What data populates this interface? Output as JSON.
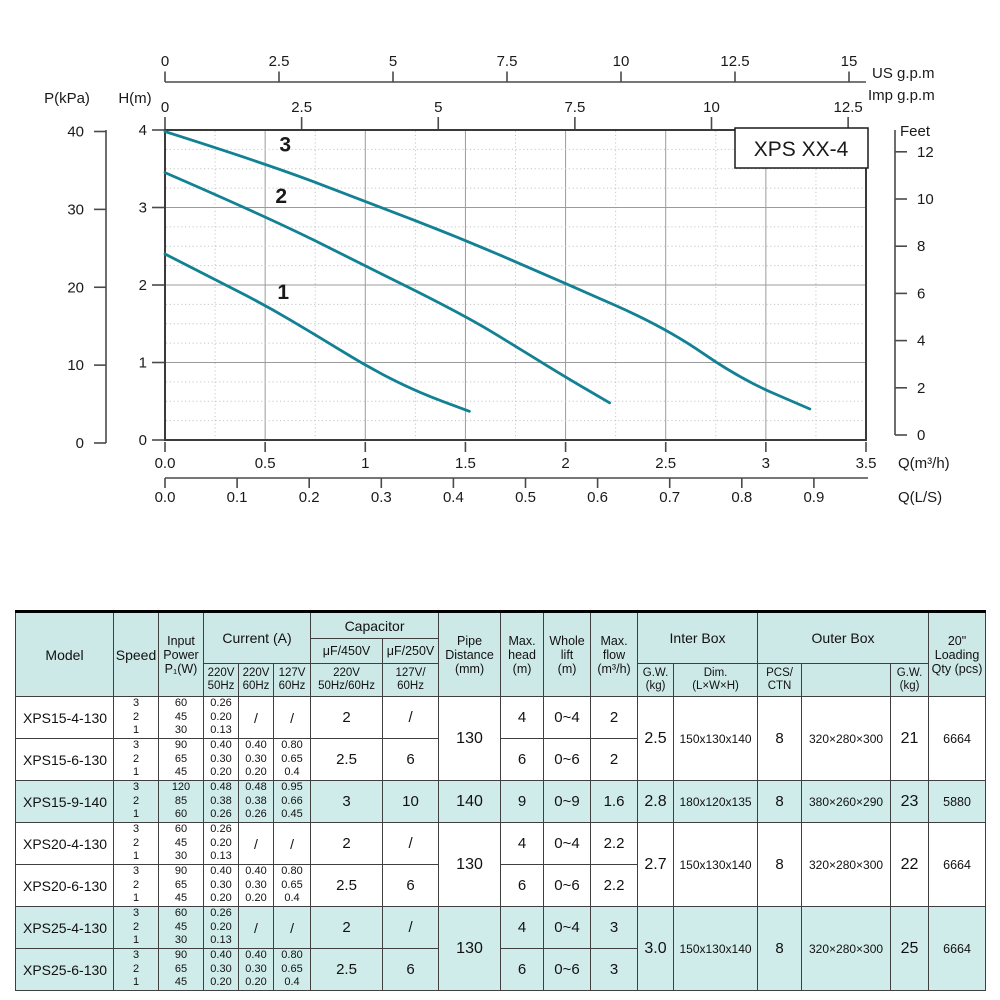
{
  "page": {
    "background": "#ffffff"
  },
  "chart_data": {
    "type": "line",
    "title": "XPS XX-4",
    "xlim": [
      0,
      3.5
    ],
    "ylim": [
      0,
      4
    ],
    "grid": "on",
    "colors": {
      "curve": "#118193",
      "grid_major": "#9b9b9b",
      "grid_minor": "#c6c6c6",
      "frame": "#3a3a3a",
      "axis": "#4a4a4a",
      "text": "#1a1a1a"
    },
    "top_axis_primary": {
      "label": "US g.p.m",
      "tick_values": [
        0,
        2.5,
        5,
        7.5,
        10,
        12.5,
        15
      ],
      "tick_labels": [
        "0",
        "2.5",
        "5",
        "7.5",
        "10",
        "12.5",
        "15"
      ]
    },
    "top_axis_secondary": {
      "label": "Imp g.p.m",
      "tick_values": [
        0,
        2.5,
        5,
        7.5,
        10,
        12.5
      ],
      "tick_labels": [
        "0",
        "2.5",
        "5",
        "7.5",
        "10",
        "12.5"
      ]
    },
    "left_axis_pressure": {
      "label": "P(kPa)",
      "tick_values": [
        40,
        30,
        20,
        10,
        0
      ],
      "tick_labels": [
        "40",
        "30",
        "20",
        "10",
        "0"
      ]
    },
    "left_axis_head": {
      "label": "H(m)",
      "tick_values": [
        4,
        3,
        2,
        1,
        0
      ],
      "tick_labels": [
        "4",
        "3",
        "2",
        "1",
        "0"
      ]
    },
    "right_axis": {
      "label": "Feet",
      "tick_values": [
        12,
        10,
        8,
        6,
        4,
        2,
        0
      ],
      "tick_labels": [
        "12",
        "10",
        "8",
        "6",
        "4",
        "2",
        "0"
      ]
    },
    "bottom_axis_primary": {
      "label": "Q(m³/h)",
      "tick_values": [
        0,
        0.5,
        1,
        1.5,
        2,
        2.5,
        3,
        3.5
      ],
      "tick_labels": [
        "0.0",
        "0.5",
        "1",
        "1.5",
        "2",
        "2.5",
        "3",
        "3.5"
      ]
    },
    "bottom_axis_secondary": {
      "label": "Q(L/S)",
      "tick_values": [
        0,
        0.1,
        0.2,
        0.3,
        0.4,
        0.5,
        0.6,
        0.7,
        0.8,
        0.9
      ],
      "tick_labels": [
        "0.0",
        "0.1",
        "0.2",
        "0.3",
        "0.4",
        "0.5",
        "0.6",
        "0.7",
        "0.8",
        "0.9"
      ]
    },
    "series": [
      {
        "name": "1",
        "label_pos": [
          0.59,
          1.82
        ],
        "points": [
          [
            0,
            2.4
          ],
          [
            0.25,
            2.07
          ],
          [
            0.5,
            1.74
          ],
          [
            0.75,
            1.36
          ],
          [
            1.0,
            0.96
          ],
          [
            1.25,
            0.63
          ],
          [
            1.52,
            0.37
          ]
        ]
      },
      {
        "name": "2",
        "label_pos": [
          0.58,
          3.06
        ],
        "points": [
          [
            0,
            3.45
          ],
          [
            0.5,
            2.89
          ],
          [
            1.0,
            2.25
          ],
          [
            1.5,
            1.6
          ],
          [
            1.75,
            1.21
          ],
          [
            2.0,
            0.81
          ],
          [
            2.22,
            0.48
          ]
        ]
      },
      {
        "name": "3",
        "label_pos": [
          0.6,
          3.72
        ],
        "points": [
          [
            0,
            3.98
          ],
          [
            0.5,
            3.57
          ],
          [
            1.0,
            3.08
          ],
          [
            1.5,
            2.58
          ],
          [
            2.0,
            2.02
          ],
          [
            2.5,
            1.45
          ],
          [
            2.87,
            0.79
          ],
          [
            3.22,
            0.4
          ]
        ]
      }
    ]
  },
  "table": {
    "colors": {
      "header_bg": "#cde9e7",
      "highlight_bg": "#d0ecea",
      "row_bg": "#ffffff",
      "border": "#3f3f3f"
    },
    "headers": {
      "model": "Model",
      "speed": "Speed",
      "input_power": [
        "Input",
        "Power",
        "P₁(W)"
      ],
      "current": "Current (A)",
      "c220_50": [
        "220V",
        "50Hz"
      ],
      "c220_60": [
        "220V",
        "60Hz"
      ],
      "c127_60": [
        "127V",
        "60Hz"
      ],
      "capacitor": "Capacitor",
      "uf450": "μF/450V",
      "uf250": "μF/250V",
      "v220_5060": [
        "220V",
        "50Hz/60Hz"
      ],
      "v127_60": [
        "127V/",
        "60Hz"
      ],
      "pipe": [
        "Pipe",
        "Distance",
        "(mm)"
      ],
      "head": [
        "Max.",
        "head",
        "(m)"
      ],
      "lift": [
        "Whole",
        "lift",
        "(m)"
      ],
      "flow": [
        "Max.",
        "flow",
        "(m³/h)"
      ],
      "inter_box": "Inter Box",
      "gw": [
        "G.W.",
        "(kg)"
      ],
      "dim": [
        "Dim.",
        "(L×W×H)"
      ],
      "outer_box": "Outer Box",
      "pcs": [
        "PCS/",
        "CTN"
      ],
      "outer_blank": "",
      "gw2": [
        "G.W.",
        "(kg)"
      ],
      "qty": [
        "20\"",
        "Loading",
        "Qty (pcs)"
      ]
    },
    "rows": [
      {
        "model": "XPS15-4-130",
        "highlight": false,
        "speed": [
          "3",
          "2",
          "1"
        ],
        "power": [
          "60",
          "45",
          "30"
        ],
        "i220_50": [
          "0.26",
          "0.20",
          "0.13"
        ],
        "i220_60": "/",
        "i127_60": "/",
        "cap450": "2",
        "cap250": "/",
        "head": "4",
        "lift": "0~4",
        "flow": "2",
        "group": {
          "span": 2,
          "pipe": "130",
          "gw": "2.5",
          "dim": "150x130x140",
          "pcs": "8",
          "outer_dim": "320×280×300",
          "gw2": "21",
          "qty": "6664"
        }
      },
      {
        "model": "XPS15-6-130",
        "highlight": false,
        "speed": [
          "3",
          "2",
          "1"
        ],
        "power": [
          "90",
          "65",
          "45"
        ],
        "i220_50": [
          "0.40",
          "0.30",
          "0.20"
        ],
        "i220_60": [
          "0.40",
          "0.30",
          "0.20"
        ],
        "i127_60": [
          "0.80",
          "0.65",
          "0.4"
        ],
        "cap450": "2.5",
        "cap250": "6",
        "head": "6",
        "lift": "0~6",
        "flow": "2"
      },
      {
        "model": "XPS15-9-140",
        "highlight": true,
        "speed": [
          "3",
          "2",
          "1"
        ],
        "power": [
          "120",
          "85",
          "60"
        ],
        "i220_50": [
          "0.48",
          "0.38",
          "0.26"
        ],
        "i220_60": [
          "0.48",
          "0.38",
          "0.26"
        ],
        "i127_60": [
          "0.95",
          "0.66",
          "0.45"
        ],
        "cap450": "3",
        "cap250": "10",
        "head": "9",
        "lift": "0~9",
        "flow": "1.6",
        "group": {
          "span": 1,
          "pipe": "140",
          "gw": "2.8",
          "dim": "180x120x135",
          "pcs": "8",
          "outer_dim": "380×260×290",
          "gw2": "23",
          "qty": "5880"
        }
      },
      {
        "model": "XPS20-4-130",
        "highlight": false,
        "speed": [
          "3",
          "2",
          "1"
        ],
        "power": [
          "60",
          "45",
          "30"
        ],
        "i220_50": [
          "0.26",
          "0.20",
          "0.13"
        ],
        "i220_60": "/",
        "i127_60": "/",
        "cap450": "2",
        "cap250": "/",
        "head": "4",
        "lift": "0~4",
        "flow": "2.2",
        "group": {
          "span": 2,
          "pipe": "130",
          "gw": "2.7",
          "dim": "150x130x140",
          "pcs": "8",
          "outer_dim": "320×280×300",
          "gw2": "22",
          "qty": "6664"
        }
      },
      {
        "model": "XPS20-6-130",
        "highlight": false,
        "speed": [
          "3",
          "2",
          "1"
        ],
        "power": [
          "90",
          "65",
          "45"
        ],
        "i220_50": [
          "0.40",
          "0.30",
          "0.20"
        ],
        "i220_60": [
          "0.40",
          "0.30",
          "0.20"
        ],
        "i127_60": [
          "0.80",
          "0.65",
          "0.4"
        ],
        "cap450": "2.5",
        "cap250": "6",
        "head": "6",
        "lift": "0~6",
        "flow": "2.2"
      },
      {
        "model": "XPS25-4-130",
        "highlight": true,
        "speed": [
          "3",
          "2",
          "1"
        ],
        "power": [
          "60",
          "45",
          "30"
        ],
        "i220_50": [
          "0.26",
          "0.20",
          "0.13"
        ],
        "i220_60": "/",
        "i127_60": "/",
        "cap450": "2",
        "cap250": "/",
        "head": "4",
        "lift": "0~4",
        "flow": "3",
        "group": {
          "span": 2,
          "pipe": "130",
          "gw": "3.0",
          "dim": "150x130x140",
          "pcs": "8",
          "outer_dim": "320×280×300",
          "gw2": "25",
          "qty": "6664"
        }
      },
      {
        "model": "XPS25-6-130",
        "highlight": true,
        "speed": [
          "3",
          "2",
          "1"
        ],
        "power": [
          "90",
          "65",
          "45"
        ],
        "i220_50": [
          "0.40",
          "0.30",
          "0.20"
        ],
        "i220_60": [
          "0.40",
          "0.30",
          "0.20"
        ],
        "i127_60": [
          "0.80",
          "0.65",
          "0.4"
        ],
        "cap450": "2.5",
        "cap250": "6",
        "head": "6",
        "lift": "0~6",
        "flow": "3"
      }
    ]
  }
}
